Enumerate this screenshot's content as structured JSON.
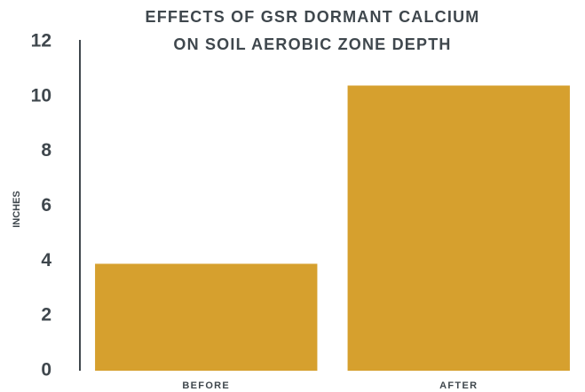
{
  "chart_data": {
    "type": "bar",
    "title_lines": [
      "EFFECTS OF GSR DORMANT CALCIUM",
      "ON SOIL AEROBIC ZONE DEPTH"
    ],
    "xlabel": "",
    "ylabel": "INCHES",
    "categories": [
      "BEFORE",
      "AFTER"
    ],
    "values": [
      3.9,
      10.4
    ],
    "ylim": [
      0,
      12
    ],
    "yticks": [
      0,
      2,
      4,
      6,
      8,
      10,
      12
    ],
    "grid": false,
    "legend": "none",
    "colors": {
      "bar": "#D6A02E",
      "axis": "#3F474D",
      "text": "#3F474D"
    }
  }
}
